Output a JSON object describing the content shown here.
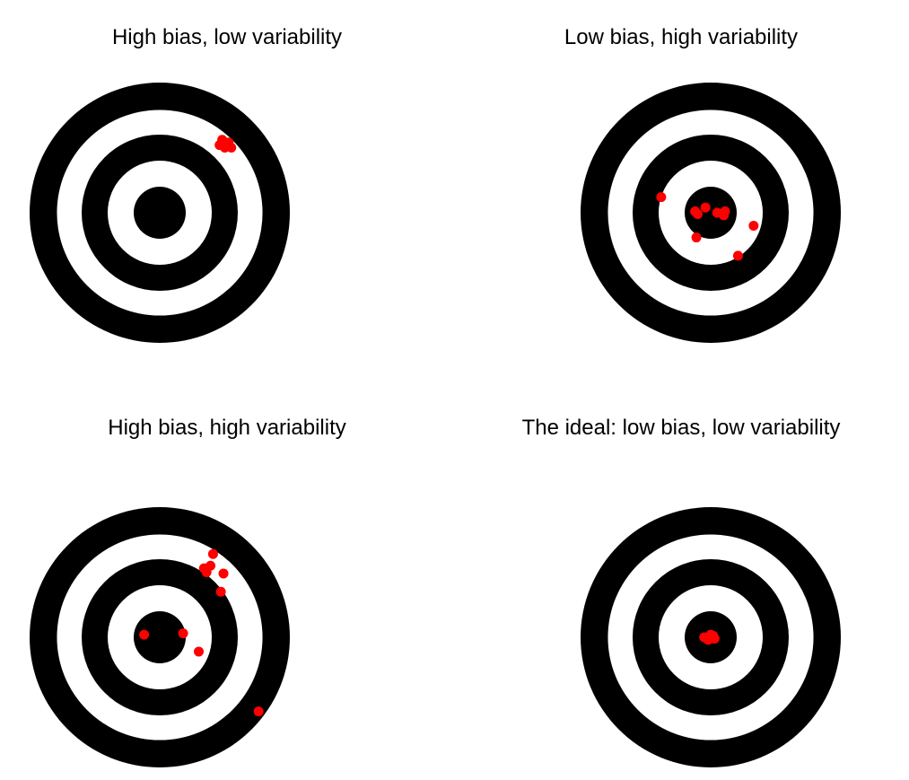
{
  "colors": {
    "ring": "#000000",
    "gap": "#ffffff",
    "shot": "#ff0000"
  },
  "panels": [
    {
      "title": "High bias, low variability",
      "shots": [
        [
          0.46,
          0.52
        ],
        [
          0.53,
          0.54
        ],
        [
          0.5,
          0.5
        ],
        [
          0.48,
          0.56
        ],
        [
          0.55,
          0.5
        ],
        [
          0.51,
          0.53
        ]
      ]
    },
    {
      "title": "Low bias, high variability",
      "shots": [
        [
          -0.38,
          0.12
        ],
        [
          -0.1,
          -0.01
        ],
        [
          -0.12,
          0.01
        ],
        [
          -0.04,
          0.04
        ],
        [
          0.05,
          0.0
        ],
        [
          0.1,
          -0.02
        ],
        [
          0.11,
          0.01
        ],
        [
          0.33,
          -0.1
        ],
        [
          -0.11,
          -0.19
        ],
        [
          0.21,
          -0.33
        ]
      ]
    },
    {
      "title": "High bias, high variability",
      "shots": [
        [
          0.41,
          0.64
        ],
        [
          0.34,
          0.53
        ],
        [
          0.39,
          0.55
        ],
        [
          0.36,
          0.5
        ],
        [
          0.49,
          0.49
        ],
        [
          0.47,
          0.35
        ],
        [
          0.18,
          0.03
        ],
        [
          -0.12,
          0.02
        ],
        [
          0.3,
          -0.11
        ],
        [
          0.76,
          -0.57
        ]
      ]
    },
    {
      "title": "The ideal: low bias, low variability",
      "shots": [
        [
          -0.05,
          0.0
        ],
        [
          0.0,
          0.02
        ],
        [
          0.03,
          -0.01
        ],
        [
          -0.02,
          -0.02
        ],
        [
          0.02,
          0.01
        ],
        [
          0.0,
          -0.01
        ]
      ]
    }
  ]
}
